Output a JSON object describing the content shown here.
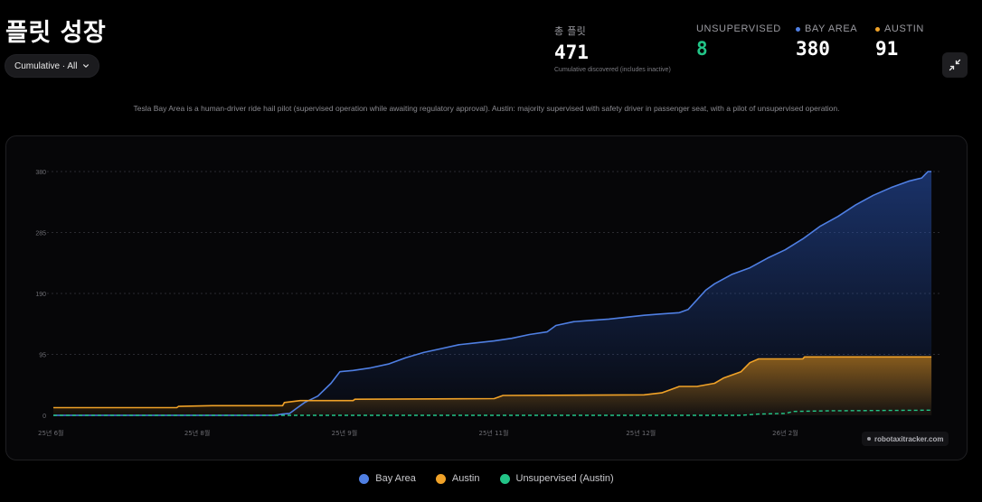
{
  "header": {
    "title": "플릿 성장",
    "filter_label": "Cumulative · All"
  },
  "stats": {
    "total": {
      "label": "총 플릿",
      "value": "471",
      "note": "Cumulative discovered (includes inactive)"
    },
    "unsupervised": {
      "label": "UNSUPERVISED",
      "value": "8",
      "color": "#22c487"
    },
    "bay_area": {
      "label": "BAY AREA",
      "value": "380",
      "color": "#4f7fe3"
    },
    "austin": {
      "label": "AUSTIN",
      "value": "91",
      "color": "#f0a228"
    }
  },
  "note": "Tesla Bay Area is a human-driver ride hail pilot (supervised operation while awaiting regulatory approval). Austin: majority supervised with safety driver in passenger seat, with a pilot of unsupervised operation.",
  "watermark": "robotaxitracker.com",
  "legend": [
    {
      "label": "Bay Area",
      "color": "#4f7fe3"
    },
    {
      "label": "Austin",
      "color": "#f0a228"
    },
    {
      "label": "Unsupervised (Austin)",
      "color": "#22c487"
    }
  ],
  "chart_data": {
    "type": "area",
    "title": "플릿 성장",
    "xlabel": "",
    "ylabel": "",
    "x_range": [
      0,
      100
    ],
    "ylim": [
      0,
      380
    ],
    "y_ticks": [
      0,
      95,
      190,
      285,
      380
    ],
    "x_ticks": [
      {
        "x": 0,
        "label": "25년 6월"
      },
      {
        "x": 16.6,
        "label": "25년 8월"
      },
      {
        "x": 33.3,
        "label": "25년 9월"
      },
      {
        "x": 50.0,
        "label": "25년 11월"
      },
      {
        "x": 66.7,
        "label": "25년 12월"
      },
      {
        "x": 83.3,
        "label": "26년 2월"
      }
    ],
    "grid": true,
    "legend_position": "bottom",
    "series": [
      {
        "name": "Bay Area",
        "color": "#4f7fe3",
        "points": [
          [
            0,
            0
          ],
          [
            25,
            0
          ],
          [
            26,
            2
          ],
          [
            26.8,
            3
          ],
          [
            27.5,
            10
          ],
          [
            28.5,
            20
          ],
          [
            30,
            30
          ],
          [
            31.5,
            50
          ],
          [
            32.5,
            68
          ],
          [
            34,
            70
          ],
          [
            36,
            74
          ],
          [
            38,
            80
          ],
          [
            40,
            90
          ],
          [
            42,
            98
          ],
          [
            44,
            104
          ],
          [
            46,
            110
          ],
          [
            48,
            113
          ],
          [
            50,
            116
          ],
          [
            52,
            120
          ],
          [
            54,
            126
          ],
          [
            56,
            130
          ],
          [
            57,
            140
          ],
          [
            59,
            146
          ],
          [
            61,
            148
          ],
          [
            63,
            150
          ],
          [
            65,
            153
          ],
          [
            67,
            156
          ],
          [
            69,
            158
          ],
          [
            71,
            160
          ],
          [
            72,
            165
          ],
          [
            73,
            180
          ],
          [
            74,
            195
          ],
          [
            75,
            205
          ],
          [
            77,
            220
          ],
          [
            79,
            230
          ],
          [
            81,
            245
          ],
          [
            83,
            258
          ],
          [
            85,
            275
          ],
          [
            87,
            295
          ],
          [
            89,
            310
          ],
          [
            91,
            328
          ],
          [
            93,
            343
          ],
          [
            95,
            355
          ],
          [
            97,
            365
          ],
          [
            98.5,
            370
          ],
          [
            99.2,
            380
          ],
          [
            99.6,
            380
          ]
        ]
      },
      {
        "name": "Austin",
        "color": "#f0a228",
        "points": [
          [
            0,
            12
          ],
          [
            14,
            12
          ],
          [
            14.2,
            14
          ],
          [
            18,
            15
          ],
          [
            26,
            15
          ],
          [
            26.2,
            20
          ],
          [
            28,
            23
          ],
          [
            34,
            23
          ],
          [
            34.2,
            25
          ],
          [
            50,
            26
          ],
          [
            51,
            31
          ],
          [
            67,
            32
          ],
          [
            69,
            35
          ],
          [
            70,
            40
          ],
          [
            71,
            45
          ],
          [
            73,
            45
          ],
          [
            75,
            50
          ],
          [
            76,
            58
          ],
          [
            78,
            68
          ],
          [
            79,
            82
          ],
          [
            80,
            88
          ],
          [
            85,
            88
          ],
          [
            85.2,
            91
          ],
          [
            99.6,
            91
          ]
        ]
      },
      {
        "name": "Unsupervised (Austin)",
        "color": "#22c487",
        "points": [
          [
            0,
            0
          ],
          [
            78,
            0
          ],
          [
            80,
            2
          ],
          [
            83,
            3
          ],
          [
            84,
            6
          ],
          [
            88,
            7
          ],
          [
            99.6,
            8
          ]
        ]
      }
    ]
  }
}
